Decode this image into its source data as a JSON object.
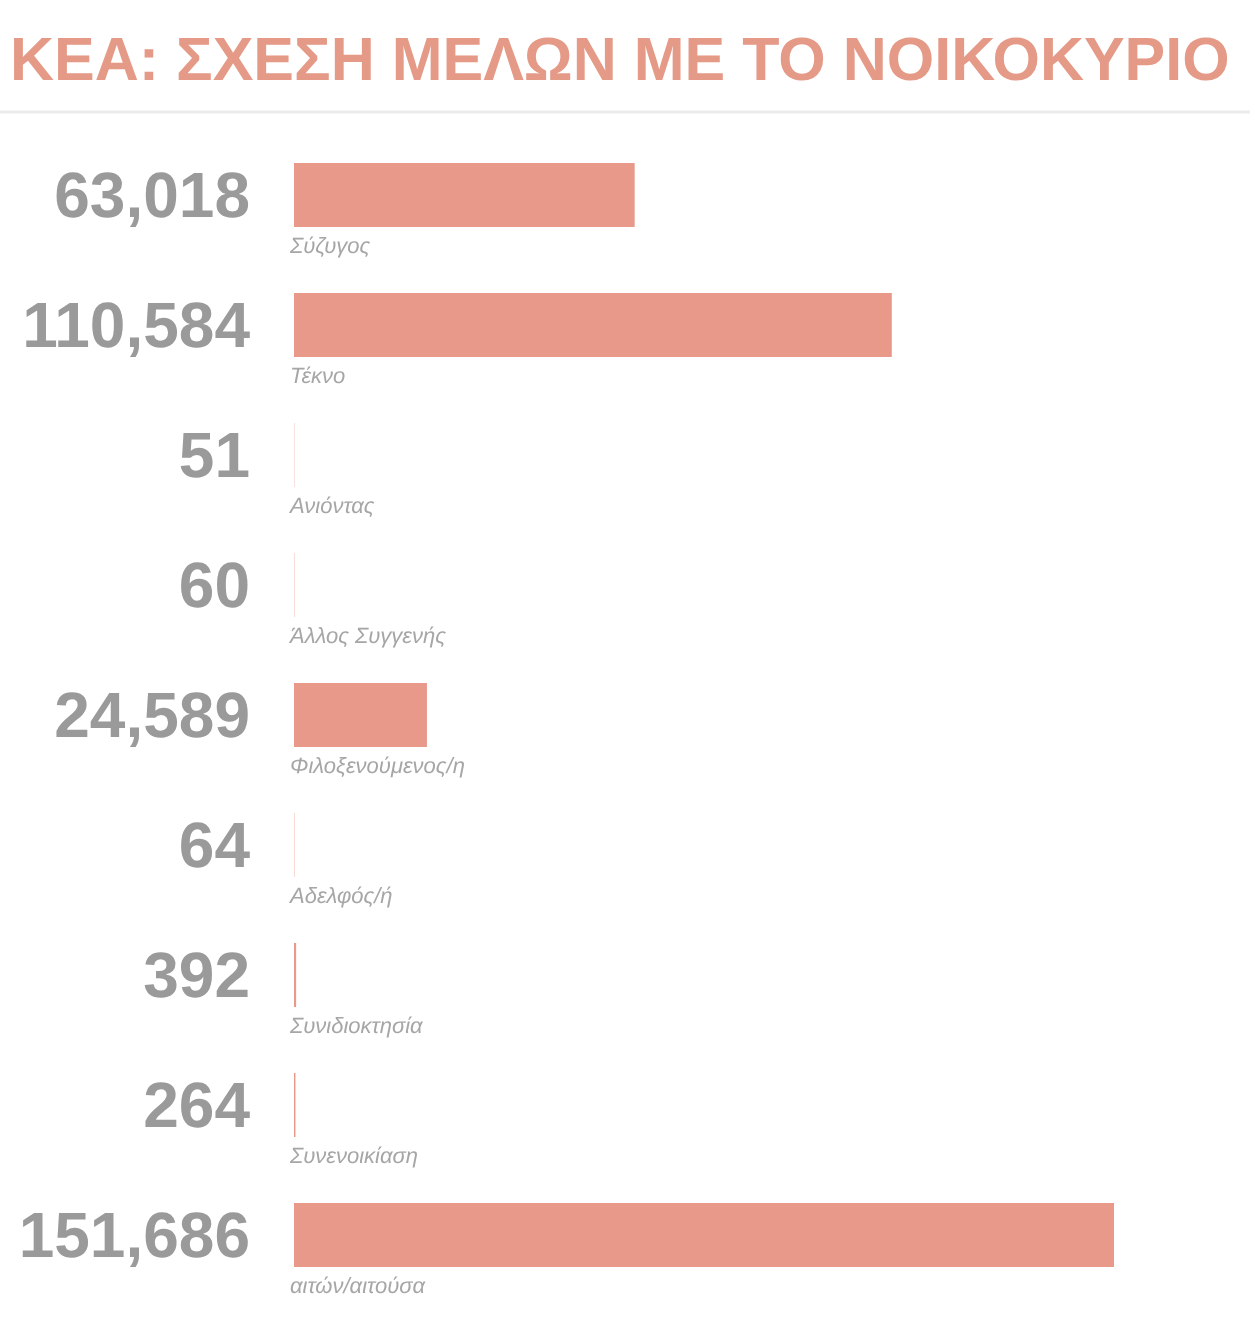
{
  "chart_data": {
    "type": "bar",
    "orientation": "horizontal",
    "title": "ΚΕΑ: ΣΧΕΣΗ ΜΕΛΩΝ ΜΕ ΤΟ ΝΟΙΚΟΚΥΡΙΟ",
    "categories": [
      "Σύζυγος",
      "Τέκνο",
      "Ανιόντας",
      "Άλλος Συγγενής",
      "Φιλοξενούμενος/η",
      "Αδελφός/ή",
      "Συνιδιοκτησία",
      "Συνενοικίαση",
      "αιτών/αιτούσα"
    ],
    "values": [
      63018,
      110584,
      51,
      60,
      24589,
      64,
      392,
      264,
      151686
    ],
    "value_labels": [
      "63,018",
      "110,584",
      "51",
      "60",
      "24,589",
      "64",
      "392",
      "264",
      "151,686"
    ],
    "color": "#e8998a"
  }
}
